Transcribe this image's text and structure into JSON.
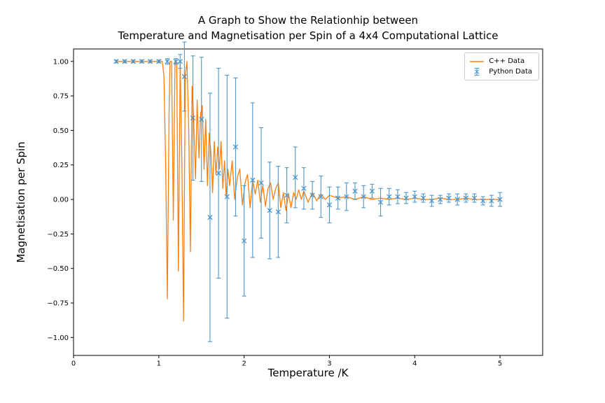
{
  "figure": {
    "title_line1": "A Graph to Show the Relationhip between",
    "title_line2": "Temperature and Magnetisation per Spin of a 4x4 Computational Lattice",
    "xlabel": "Temperature /K",
    "ylabel": "Magnetisation per Spin"
  },
  "legend": {
    "position": "upper right",
    "entries": [
      {
        "label": "C++ Data",
        "sample": "line",
        "color": "#ff7f0e"
      },
      {
        "label": "Python Data",
        "sample": "errorbar-x-marker",
        "color": "#4c96cb"
      }
    ]
  },
  "chart_data": {
    "type": "line",
    "title": "A Graph to Show the Relationhip between Temperature and Magnetisation per Spin of a 4x4 Computational Lattice",
    "xlabel": "Temperature /K",
    "ylabel": "Magnetisation per Spin",
    "xlim": [
      0,
      5.5
    ],
    "ylim": [
      -1.13,
      1.09
    ],
    "xticks": [
      0,
      1,
      2,
      3,
      4,
      5
    ],
    "yticks": [
      -1.0,
      -0.75,
      -0.5,
      -0.25,
      0.0,
      0.25,
      0.5,
      0.75,
      1.0
    ],
    "grid": false,
    "legend_position": "upper right",
    "series": [
      {
        "name": "C++ Data",
        "type": "line",
        "color": "#ff7f0e",
        "points": [
          [
            0.5,
            1.0
          ],
          [
            0.55,
            1.0
          ],
          [
            0.6,
            1.0
          ],
          [
            0.65,
            1.0
          ],
          [
            0.7,
            1.0
          ],
          [
            0.75,
            1.0
          ],
          [
            0.8,
            1.0
          ],
          [
            0.85,
            1.0
          ],
          [
            0.9,
            1.0
          ],
          [
            0.95,
            1.0
          ],
          [
            1.0,
            1.0
          ],
          [
            1.04,
            1.0
          ],
          [
            1.06,
            0.9
          ],
          [
            1.08,
            0.25
          ],
          [
            1.1,
            -0.72
          ],
          [
            1.12,
            0.6
          ],
          [
            1.13,
            1.0
          ],
          [
            1.15,
            1.0
          ],
          [
            1.17,
            -0.15
          ],
          [
            1.19,
            1.0
          ],
          [
            1.21,
            0.98
          ],
          [
            1.23,
            -0.52
          ],
          [
            1.25,
            1.0
          ],
          [
            1.27,
            0.28
          ],
          [
            1.29,
            -0.88
          ],
          [
            1.31,
            0.9
          ],
          [
            1.33,
            1.0
          ],
          [
            1.35,
            0.52
          ],
          [
            1.37,
            -0.38
          ],
          [
            1.39,
            0.82
          ],
          [
            1.41,
            0.55
          ],
          [
            1.43,
            0.15
          ],
          [
            1.45,
            0.72
          ],
          [
            1.47,
            0.3
          ],
          [
            1.49,
            0.62
          ],
          [
            1.51,
            0.68
          ],
          [
            1.53,
            0.22
          ],
          [
            1.55,
            0.58
          ],
          [
            1.57,
            0.1
          ],
          [
            1.59,
            0.48
          ],
          [
            1.61,
            0.35
          ],
          [
            1.63,
            0.05
          ],
          [
            1.65,
            0.42
          ],
          [
            1.67,
            0.18
          ],
          [
            1.69,
            0.38
          ],
          [
            1.71,
            0.22
          ],
          [
            1.73,
            0.42
          ],
          [
            1.75,
            0.08
          ],
          [
            1.77,
            0.28
          ],
          [
            1.79,
            0.02
          ],
          [
            1.81,
            0.22
          ],
          [
            1.83,
            0.1
          ],
          [
            1.86,
            0.28
          ],
          [
            1.89,
            0.0
          ],
          [
            1.92,
            0.16
          ],
          [
            1.95,
            0.22
          ],
          [
            1.98,
            -0.04
          ],
          [
            2.01,
            0.12
          ],
          [
            2.04,
            0.18
          ],
          [
            2.07,
            -0.06
          ],
          [
            2.1,
            0.14
          ],
          [
            2.13,
            0.04
          ],
          [
            2.16,
            0.14
          ],
          [
            2.19,
            -0.02
          ],
          [
            2.22,
            0.1
          ],
          [
            2.25,
            -0.05
          ],
          [
            2.28,
            0.08
          ],
          [
            2.31,
            0.12
          ],
          [
            2.34,
            0.0
          ],
          [
            2.37,
            0.08
          ],
          [
            2.4,
            0.12
          ],
          [
            2.43,
            -0.06
          ],
          [
            2.46,
            0.05
          ],
          [
            2.49,
            -0.08
          ],
          [
            2.52,
            0.04
          ],
          [
            2.55,
            -0.06
          ],
          [
            2.58,
            0.05
          ],
          [
            2.61,
            0.0
          ],
          [
            2.64,
            0.07
          ],
          [
            2.67,
            0.0
          ],
          [
            2.7,
            0.06
          ],
          [
            2.75,
            -0.02
          ],
          [
            2.8,
            0.05
          ],
          [
            2.85,
            -0.01
          ],
          [
            2.9,
            0.04
          ],
          [
            2.95,
            0.0
          ],
          [
            3.0,
            0.03
          ],
          [
            3.1,
            0.01
          ],
          [
            3.2,
            0.02
          ],
          [
            3.3,
            0.0
          ],
          [
            3.4,
            0.02
          ],
          [
            3.5,
            0.0
          ],
          [
            3.6,
            0.01
          ],
          [
            3.7,
            0.0
          ],
          [
            3.8,
            0.01
          ],
          [
            3.9,
            0.0
          ],
          [
            4.0,
            0.01
          ],
          [
            4.1,
            0.0
          ],
          [
            4.2,
            0.0
          ],
          [
            4.3,
            0.01
          ],
          [
            4.4,
            0.0
          ],
          [
            4.5,
            0.0
          ],
          [
            4.6,
            0.01
          ],
          [
            4.7,
            0.0
          ],
          [
            4.8,
            0.0
          ],
          [
            4.9,
            0.0
          ],
          [
            5.0,
            0.0
          ]
        ]
      },
      {
        "name": "Python Data",
        "type": "errorbar",
        "color": "#4c96cb",
        "marker": "x",
        "x": [
          0.5,
          0.6,
          0.7,
          0.8,
          0.9,
          1.0,
          1.1,
          1.2,
          1.25,
          1.3,
          1.4,
          1.5,
          1.6,
          1.7,
          1.8,
          1.9,
          2.0,
          2.1,
          2.2,
          2.3,
          2.4,
          2.5,
          2.6,
          2.7,
          2.8,
          2.9,
          3.0,
          3.1,
          3.2,
          3.3,
          3.4,
          3.5,
          3.6,
          3.7,
          3.8,
          3.9,
          4.0,
          4.1,
          4.2,
          4.3,
          4.4,
          4.5,
          4.6,
          4.7,
          4.8,
          4.9,
          5.0
        ],
        "y": [
          1.0,
          1.0,
          1.0,
          1.0,
          1.0,
          1.0,
          1.0,
          1.0,
          1.0,
          0.89,
          0.59,
          0.58,
          -0.13,
          0.19,
          0.02,
          0.38,
          -0.3,
          0.14,
          0.12,
          -0.08,
          -0.09,
          0.03,
          0.16,
          0.08,
          0.03,
          0.02,
          -0.04,
          0.01,
          0.02,
          0.06,
          0.02,
          0.06,
          -0.02,
          0.02,
          0.02,
          0.01,
          0.02,
          0.01,
          -0.01,
          0.0,
          0.01,
          0.0,
          0.01,
          0.01,
          -0.01,
          -0.01,
          0.0
        ],
        "yerr": [
          0.01,
          0.01,
          0.01,
          0.01,
          0.01,
          0.01,
          0.02,
          0.02,
          0.05,
          0.25,
          0.45,
          0.45,
          0.9,
          0.76,
          0.88,
          0.5,
          0.4,
          0.56,
          0.4,
          0.35,
          0.33,
          0.2,
          0.22,
          0.15,
          0.1,
          0.15,
          0.13,
          0.08,
          0.1,
          0.06,
          0.08,
          0.05,
          0.1,
          0.06,
          0.05,
          0.04,
          0.04,
          0.03,
          0.04,
          0.03,
          0.03,
          0.04,
          0.03,
          0.03,
          0.03,
          0.04,
          0.05
        ]
      }
    ]
  }
}
